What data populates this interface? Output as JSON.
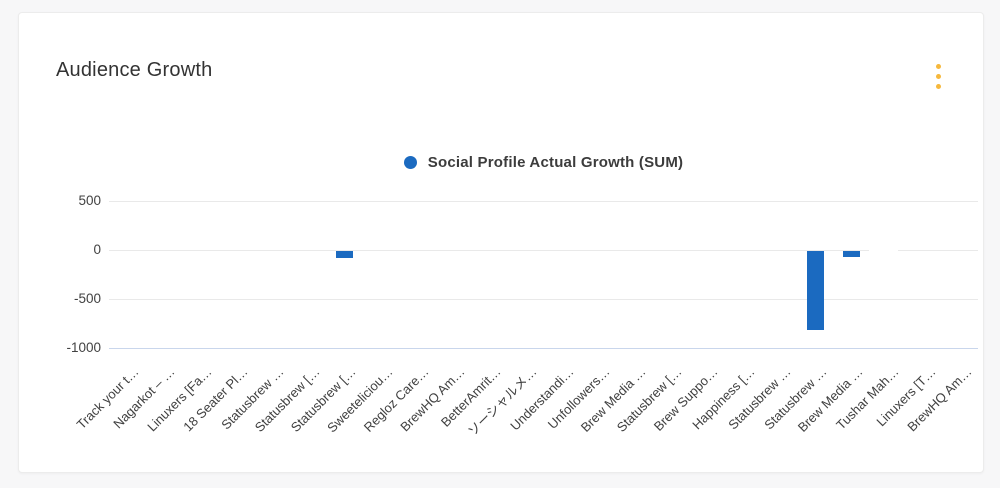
{
  "page": {
    "background_color": "#f7f7f8"
  },
  "card": {
    "title": "Audience Growth",
    "menu_icon": "kebab-menu-icon",
    "menu_icon_color": "#f6b83c"
  },
  "legend": {
    "label": "Social Profile Actual Growth (SUM)",
    "marker_color": "#1b6ac0"
  },
  "chart_data": {
    "type": "bar",
    "title": "Audience Growth",
    "series": [
      {
        "name": "Social Profile Actual Growth (SUM)",
        "values": [
          0,
          0,
          0,
          0,
          0,
          0,
          -70,
          0,
          0,
          0,
          0,
          0,
          0,
          0,
          0,
          0,
          0,
          0,
          0,
          -810,
          -60,
          0,
          0,
          0
        ]
      }
    ],
    "categories": [
      "Track your t…",
      "Nagarkot – …",
      "Linuxers [Fa…",
      "18 Seater Pl…",
      "Statusbrew …",
      "Statusbrew […",
      "Statusbrew […",
      "Sweeteliciou…",
      "Regloz Care…",
      "BrewHQ Am…",
      "BetterAmrit…",
      "ソーシャルメ…",
      "Understandi…",
      "Unfollowers…",
      "Brew Media …",
      "Statusbrew […",
      "Brew Suppo…",
      "Happiness […",
      "Statusbrew …",
      "Statusbrew …",
      "Brew Media …",
      "Tushar Mah…",
      "Linuxers [T…",
      "BrewHQ Am…"
    ],
    "yticks": [
      500,
      0,
      -500,
      -1000
    ],
    "ylim": [
      -1100,
      600
    ],
    "bar_color": "#1b6ac0",
    "grid": true,
    "legend_position": "top-center",
    "x_label_rotation": -45,
    "highlight_band": {
      "category_index": 21,
      "color": "#ffffff"
    }
  }
}
